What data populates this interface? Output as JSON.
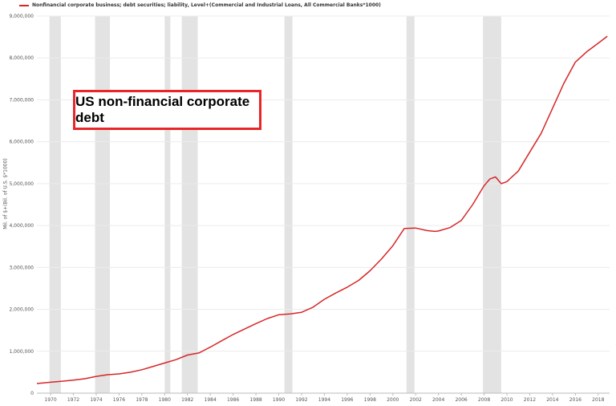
{
  "legend": {
    "label": "Nonfinancial corporate business; debt securities; liability, Level+(Commercial and Industrial Loans, All Commercial Banks*1000)",
    "color": "#d62728"
  },
  "annotation": {
    "text": "US non-financial corporate debt",
    "border_color": "#e8262a"
  },
  "chart_data": {
    "type": "line",
    "title": "",
    "xlabel": "",
    "ylabel": "Mil. of $+(Bil. of U.S. $*1000)",
    "xlim": [
      1968.8,
      2019.0
    ],
    "ylim": [
      0,
      9000000
    ],
    "x_ticks": [
      1970,
      1972,
      1974,
      1976,
      1978,
      1980,
      1982,
      1984,
      1986,
      1988,
      1990,
      1992,
      1994,
      1996,
      1998,
      2000,
      2002,
      2004,
      2006,
      2008,
      2010,
      2012,
      2014,
      2016,
      2018
    ],
    "y_ticks": [
      0,
      1000000,
      2000000,
      3000000,
      4000000,
      5000000,
      6000000,
      7000000,
      8000000,
      9000000
    ],
    "y_tick_labels": [
      "0",
      "1,000,000",
      "2,000,000",
      "3,000,000",
      "4,000,000",
      "5,000,000",
      "6,000,000",
      "7,000,000",
      "8,000,000",
      "9,000,000"
    ],
    "grid": "horizontal",
    "legend_position": "top-left",
    "recessions": [
      [
        1969.9,
        1970.9
      ],
      [
        1973.9,
        1975.2
      ],
      [
        1980.0,
        1980.5
      ],
      [
        1981.5,
        1982.9
      ],
      [
        1990.5,
        1991.2
      ],
      [
        2001.2,
        2001.9
      ],
      [
        2007.9,
        2009.5
      ]
    ],
    "series": [
      {
        "name": "Nonfinancial corporate business; debt securities; liability, Level+(Commercial and Industrial Loans, All Commercial Banks*1000)",
        "color": "#d62728",
        "x": [
          1968.8,
          1970,
          1971,
          1972,
          1973,
          1974,
          1975,
          1976,
          1977,
          1978,
          1979,
          1980,
          1981,
          1982,
          1983,
          1984,
          1985,
          1986,
          1987,
          1988,
          1989,
          1990,
          1991,
          1992,
          1993,
          1994,
          1995,
          1996,
          1997,
          1998,
          1999,
          2000,
          2001,
          2002,
          2003,
          2003.7,
          2004,
          2005,
          2006,
          2007,
          2008,
          2008.5,
          2009,
          2009.5,
          2010,
          2011,
          2012,
          2013,
          2014,
          2015,
          2016,
          2017,
          2018,
          2018.8
        ],
        "values": [
          230000,
          260000,
          285000,
          310000,
          345000,
          400000,
          440000,
          460000,
          500000,
          560000,
          640000,
          720000,
          800000,
          910000,
          960000,
          1100000,
          1250000,
          1400000,
          1530000,
          1660000,
          1780000,
          1870000,
          1890000,
          1930000,
          2050000,
          2240000,
          2390000,
          2530000,
          2690000,
          2920000,
          3200000,
          3520000,
          3930000,
          3940000,
          3880000,
          3860000,
          3870000,
          3950000,
          4120000,
          4500000,
          4950000,
          5110000,
          5160000,
          5000000,
          5050000,
          5300000,
          5750000,
          6200000,
          6800000,
          7400000,
          7900000,
          8150000,
          8350000,
          8520000
        ]
      }
    ]
  }
}
